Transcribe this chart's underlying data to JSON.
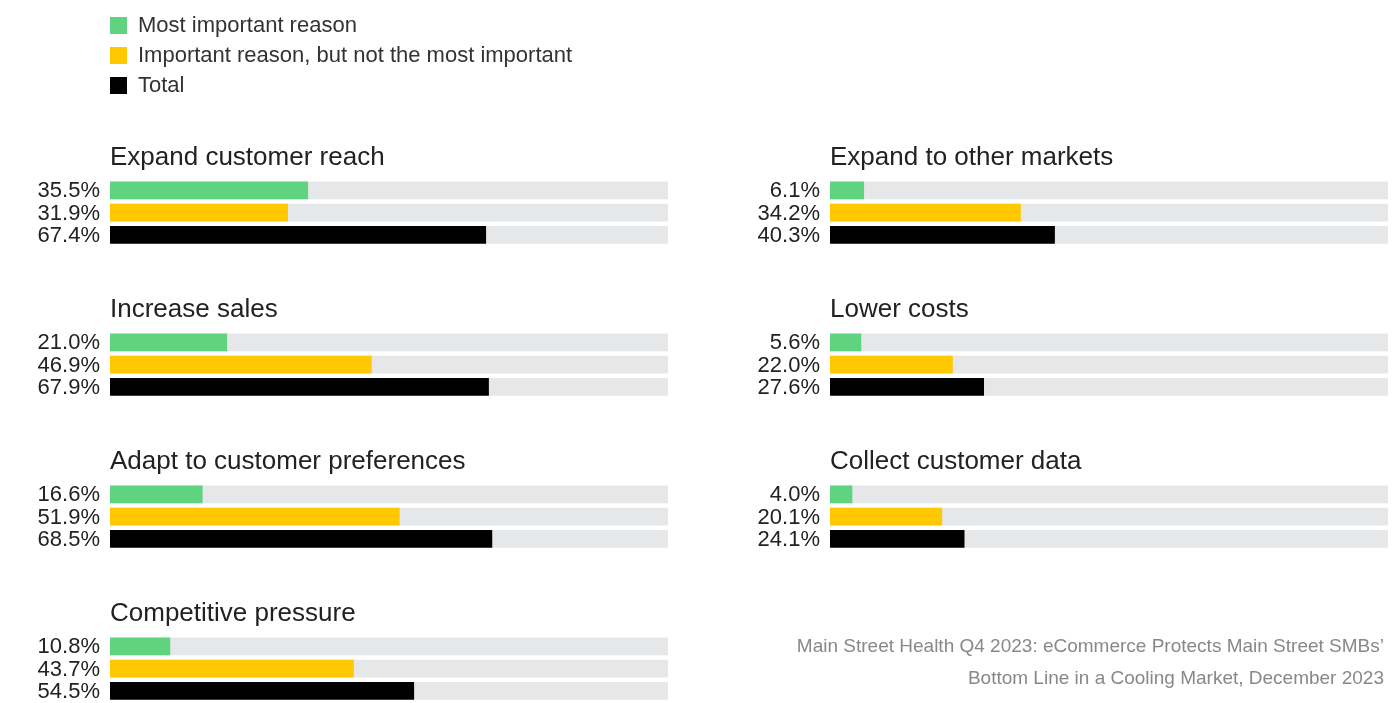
{
  "chart_data": [
    {
      "type": "bar",
      "orientation": "horizontal",
      "title": "Expand customer reach",
      "categories": [
        null
      ],
      "xlim": [
        0,
        100
      ],
      "tick_labels": false,
      "legend": "top left",
      "series": [
        {
          "name": "Most important reason",
          "color": "#5fd37f",
          "values": [
            35.5
          ],
          "value_labels": [
            "35.5%"
          ]
        },
        {
          "name": "Important reason, but not the most important",
          "color": "#ffc800",
          "values": [
            31.9
          ],
          "value_labels": [
            "31.9%"
          ]
        },
        {
          "name": "Total",
          "color": "#000000",
          "values": [
            67.4
          ],
          "value_labels": [
            "67.4%"
          ]
        }
      ]
    },
    {
      "type": "bar",
      "orientation": "horizontal",
      "title": "Expand to other markets",
      "categories": [
        null
      ],
      "xlim": [
        0,
        100
      ],
      "tick_labels": false,
      "series": [
        {
          "color": "#5fd37f",
          "values": [
            6.1
          ],
          "value_labels": [
            "6.1%"
          ]
        },
        {
          "color": "#ffc800",
          "values": [
            34.2
          ],
          "value_labels": [
            "34.2%"
          ]
        },
        {
          "color": "#000000",
          "values": [
            40.3
          ],
          "value_labels": [
            "40.3%"
          ]
        }
      ]
    },
    {
      "type": "bar",
      "orientation": "horizontal",
      "title": "Increase sales",
      "categories": [
        null
      ],
      "xlim": [
        0,
        100
      ],
      "tick_labels": false,
      "series": [
        {
          "color": "#5fd37f",
          "values": [
            21.0
          ],
          "value_labels": [
            "21.0%"
          ]
        },
        {
          "color": "#ffc800",
          "values": [
            46.9
          ],
          "value_labels": [
            "46.9%"
          ]
        },
        {
          "color": "#000000",
          "values": [
            67.9
          ],
          "value_labels": [
            "67.9%"
          ]
        }
      ]
    },
    {
      "type": "bar",
      "orientation": "horizontal",
      "title": "Lower costs",
      "categories": [
        null
      ],
      "xlim": [
        0,
        100
      ],
      "tick_labels": false,
      "series": [
        {
          "color": "#5fd37f",
          "values": [
            5.6
          ],
          "value_labels": [
            "5.6%"
          ]
        },
        {
          "color": "#ffc800",
          "values": [
            22.0
          ],
          "value_labels": [
            "22.0%"
          ]
        },
        {
          "color": "#000000",
          "values": [
            27.6
          ],
          "value_labels": [
            "27.6%"
          ]
        }
      ]
    },
    {
      "type": "bar",
      "orientation": "horizontal",
      "title": "Adapt to customer preferences",
      "categories": [
        null
      ],
      "xlim": [
        0,
        100
      ],
      "tick_labels": false,
      "series": [
        {
          "color": "#5fd37f",
          "values": [
            16.6
          ],
          "value_labels": [
            "16.6%"
          ]
        },
        {
          "color": "#ffc800",
          "values": [
            51.9
          ],
          "value_labels": [
            "51.9%"
          ]
        },
        {
          "color": "#000000",
          "values": [
            68.5
          ],
          "value_labels": [
            "68.5%"
          ]
        }
      ]
    },
    {
      "type": "bar",
      "orientation": "horizontal",
      "title": "Collect customer data",
      "categories": [
        null
      ],
      "xlim": [
        0,
        100
      ],
      "tick_labels": false,
      "series": [
        {
          "color": "#5fd37f",
          "values": [
            4.0
          ],
          "value_labels": [
            "4.0%"
          ]
        },
        {
          "color": "#ffc800",
          "values": [
            20.1
          ],
          "value_labels": [
            "20.1%"
          ]
        },
        {
          "color": "#000000",
          "values": [
            24.1
          ],
          "value_labels": [
            "24.1%"
          ]
        }
      ]
    },
    {
      "type": "bar",
      "orientation": "horizontal",
      "title": "Competitive pressure",
      "categories": [
        null
      ],
      "xlim": [
        0,
        100
      ],
      "tick_labels": false,
      "annotations": [
        "Main Street Health Q4 2023: eCommerce Protects Main Street SMBs’ Bottom Line in a Cooling Market, December 2023"
      ],
      "series": [
        {
          "color": "#5fd37f",
          "values": [
            10.8
          ],
          "value_labels": [
            "10.8%"
          ]
        },
        {
          "color": "#ffc800",
          "values": [
            43.7
          ],
          "value_labels": [
            "43.7%"
          ]
        },
        {
          "color": "#000000",
          "values": [
            54.5
          ],
          "value_labels": [
            "54.5%"
          ]
        }
      ]
    }
  ]
}
